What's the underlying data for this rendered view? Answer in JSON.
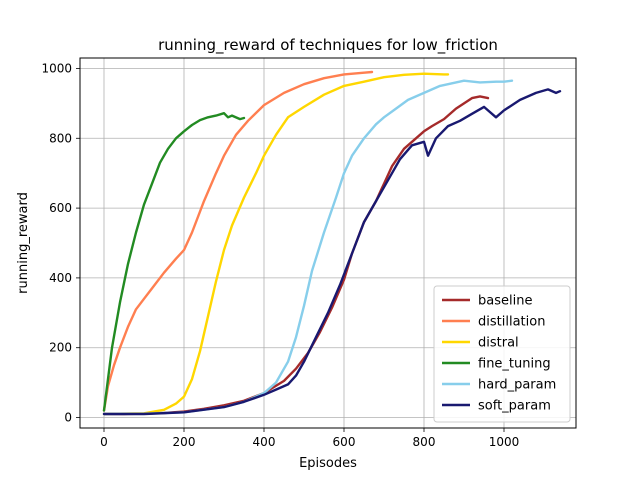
{
  "chart_data": {
    "type": "line",
    "title": "running_reward of techniques for low_friction",
    "xlabel": "Episodes",
    "ylabel": "running_reward",
    "xlim": [
      -60,
      1180
    ],
    "ylim": [
      -30,
      1030
    ],
    "xticks": [
      0,
      200,
      400,
      600,
      800,
      1000
    ],
    "yticks": [
      0,
      200,
      400,
      600,
      800,
      1000
    ],
    "grid": true,
    "legend_position": "lower right",
    "series": [
      {
        "name": "baseline",
        "color": "#a52a2a",
        "x": [
          0,
          50,
          100,
          150,
          200,
          250,
          300,
          350,
          400,
          450,
          480,
          510,
          540,
          570,
          600,
          620,
          650,
          680,
          700,
          720,
          750,
          780,
          800,
          820,
          850,
          880,
          900,
          920,
          940,
          960
        ],
        "y": [
          10,
          10,
          11,
          13,
          17,
          25,
          35,
          48,
          70,
          105,
          140,
          185,
          245,
          315,
          395,
          470,
          560,
          620,
          670,
          720,
          770,
          800,
          820,
          835,
          855,
          885,
          900,
          915,
          920,
          915
        ]
      },
      {
        "name": "distillation",
        "color": "#ff7f50",
        "x": [
          0,
          10,
          25,
          40,
          60,
          80,
          100,
          120,
          150,
          180,
          200,
          220,
          250,
          280,
          300,
          330,
          360,
          400,
          450,
          500,
          550,
          600,
          650,
          670
        ],
        "y": [
          20,
          90,
          150,
          200,
          260,
          310,
          340,
          370,
          415,
          455,
          480,
          530,
          620,
          700,
          750,
          810,
          850,
          895,
          930,
          955,
          972,
          983,
          988,
          990
        ]
      },
      {
        "name": "distral",
        "color": "#ffd700",
        "x": [
          0,
          100,
          150,
          180,
          200,
          220,
          240,
          260,
          280,
          300,
          320,
          350,
          380,
          400,
          430,
          460,
          500,
          550,
          600,
          650,
          700,
          750,
          800,
          850,
          860
        ],
        "y": [
          10,
          12,
          22,
          40,
          60,
          110,
          190,
          290,
          390,
          480,
          550,
          630,
          700,
          750,
          810,
          860,
          890,
          925,
          950,
          962,
          975,
          982,
          985,
          983,
          983
        ]
      },
      {
        "name": "fine_tuning",
        "color": "#228b22",
        "x": [
          0,
          20,
          40,
          60,
          80,
          100,
          120,
          140,
          160,
          180,
          200,
          220,
          240,
          260,
          280,
          300,
          310,
          320,
          340,
          350
        ],
        "y": [
          20,
          200,
          330,
          440,
          530,
          610,
          670,
          730,
          770,
          800,
          820,
          838,
          852,
          860,
          865,
          872,
          860,
          865,
          855,
          858
        ]
      },
      {
        "name": "hard_param",
        "color": "#87ceeb",
        "x": [
          0,
          100,
          200,
          300,
          350,
          400,
          430,
          460,
          480,
          500,
          520,
          550,
          580,
          600,
          620,
          650,
          680,
          700,
          730,
          760,
          800,
          840,
          880,
          900,
          940,
          980,
          1000,
          1020
        ],
        "y": [
          10,
          11,
          15,
          30,
          45,
          70,
          100,
          160,
          230,
          320,
          420,
          530,
          630,
          700,
          750,
          800,
          840,
          860,
          885,
          910,
          930,
          950,
          960,
          965,
          960,
          962,
          962,
          965
        ]
      },
      {
        "name": "soft_param",
        "color": "#191970",
        "x": [
          0,
          100,
          200,
          300,
          350,
          400,
          430,
          460,
          480,
          500,
          530,
          560,
          590,
          620,
          650,
          680,
          710,
          740,
          770,
          800,
          810,
          830,
          860,
          890,
          920,
          950,
          960,
          980,
          1000,
          1040,
          1080,
          1110,
          1130,
          1140
        ],
        "y": [
          10,
          10,
          15,
          30,
          45,
          65,
          80,
          95,
          120,
          160,
          230,
          300,
          380,
          470,
          560,
          620,
          680,
          740,
          780,
          790,
          750,
          800,
          835,
          850,
          870,
          890,
          880,
          860,
          880,
          910,
          930,
          940,
          930,
          935
        ]
      }
    ]
  }
}
